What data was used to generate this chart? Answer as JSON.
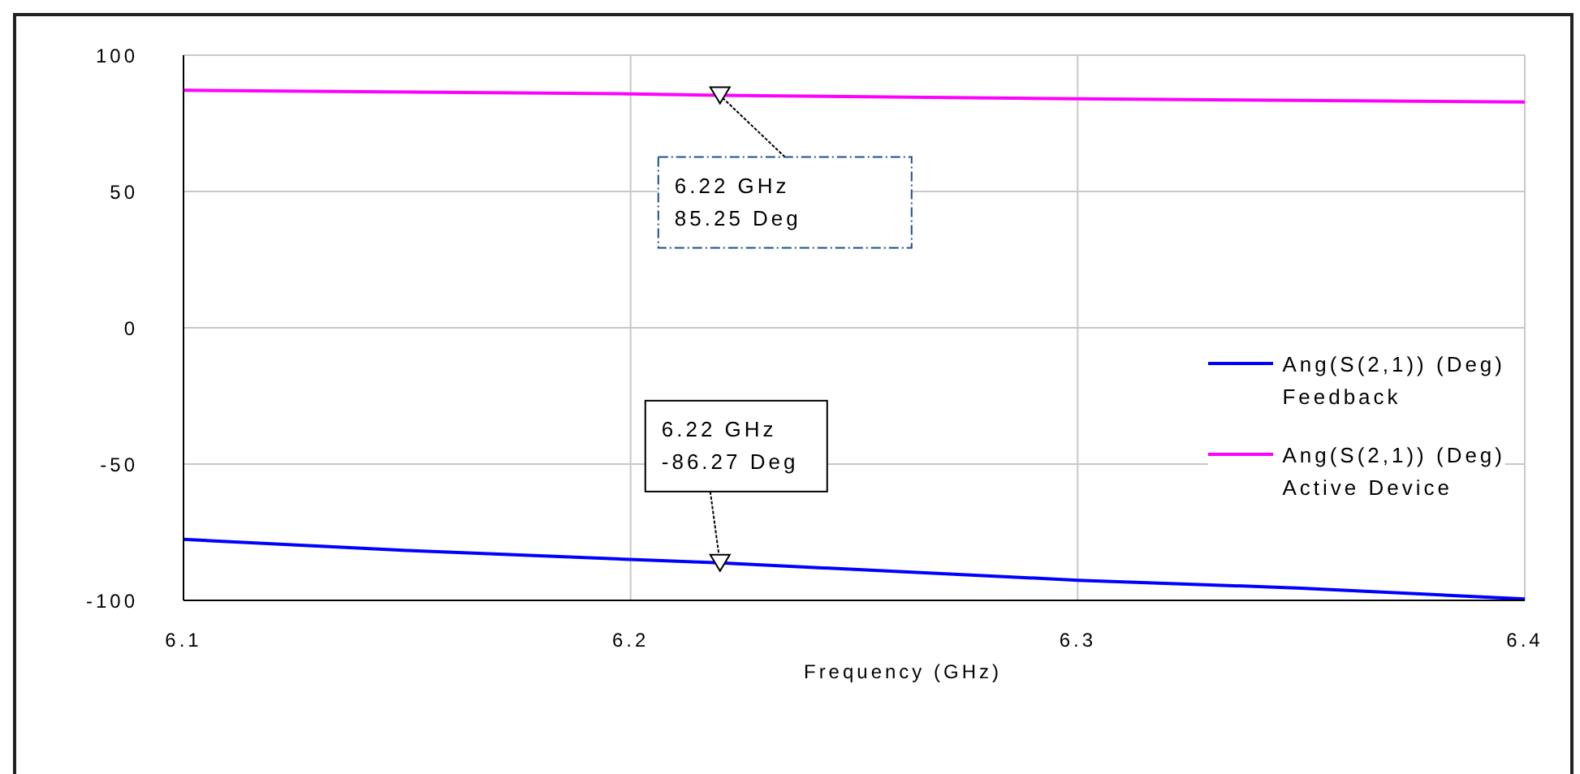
{
  "chart_data": {
    "type": "line",
    "xlabel": "Frequency (GHz)",
    "xlim": [
      6.1,
      6.4
    ],
    "xticks": [
      6.1,
      6.2,
      6.3,
      6.4
    ],
    "ylim": [
      -100,
      100
    ],
    "yticks": [
      100,
      50,
      0,
      -50,
      -100
    ],
    "grid": true,
    "legend": "right",
    "series": [
      {
        "name": "Ang(S(2,1)) (Deg)\nFeedback",
        "color": "#0000ff",
        "x": [
          6.1,
          6.15,
          6.22,
          6.3,
          6.35,
          6.4
        ],
        "values": [
          -77.6,
          -81.7,
          -86.27,
          -92.6,
          -95.5,
          -99.5
        ]
      },
      {
        "name": "Ang(S(2,1)) (Deg)\nActive Device",
        "color": "#ff00ff",
        "x": [
          6.1,
          6.2,
          6.22,
          6.3,
          6.4
        ],
        "values": [
          87.1,
          85.8,
          85.25,
          84.0,
          82.8
        ]
      }
    ],
    "annotations": [
      {
        "text": "6.22 GHz\n85.25 Deg",
        "x": 6.22,
        "y": 85.25
      },
      {
        "text": "6.22 GHz\n-86.27 Deg",
        "x": 6.22,
        "y": -86.27
      }
    ]
  }
}
